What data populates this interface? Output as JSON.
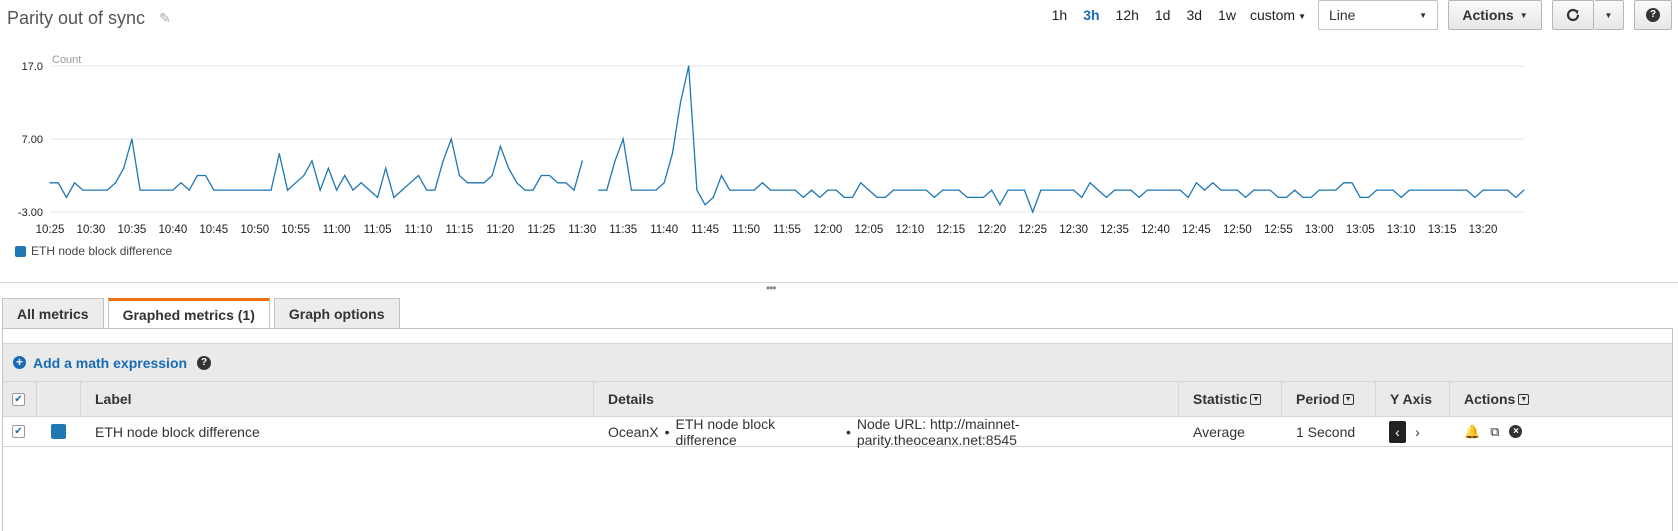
{
  "graph": {
    "title": "Parity out of sync"
  },
  "time_ranges": [
    "1h",
    "3h",
    "12h",
    "1d",
    "3d",
    "1w"
  ],
  "active_range": "3h",
  "custom_label": "custom",
  "chart_type_select": "Line",
  "actions_label": "Actions",
  "colors": {
    "series": "#1f77b4",
    "link": "#1a6bb5",
    "active_tab": "#ec7211"
  },
  "chart_data": {
    "type": "line",
    "ylabel": "Count",
    "y_ticks": [
      "17.0",
      "7.00",
      "-3.00"
    ],
    "ylim": [
      -3,
      17
    ],
    "grid": true,
    "x_ticks": [
      "10:25",
      "10:30",
      "10:35",
      "10:40",
      "10:45",
      "10:50",
      "10:55",
      "11:00",
      "11:05",
      "11:10",
      "11:15",
      "11:20",
      "11:25",
      "11:30",
      "11:35",
      "11:40",
      "11:45",
      "11:50",
      "11:55",
      "12:00",
      "12:05",
      "12:10",
      "12:15",
      "12:20",
      "12:25",
      "12:30",
      "12:35",
      "12:40",
      "12:45",
      "12:50",
      "12:55",
      "13:00",
      "13:05",
      "13:10",
      "13:15",
      "13:20"
    ],
    "x_start": "10:25",
    "x_step_minutes": 1,
    "legend_position": "bottom-left",
    "series": [
      {
        "name": "ETH node block difference",
        "values": [
          1,
          1,
          -1,
          1,
          0,
          0,
          0,
          0,
          1,
          3,
          7,
          0,
          0,
          0,
          0,
          0,
          1,
          0,
          2,
          2,
          0,
          0,
          0,
          0,
          0,
          0,
          0,
          0,
          5,
          0,
          1,
          2,
          4,
          0,
          3,
          0,
          2,
          0,
          1,
          0,
          -1,
          3,
          -1,
          0,
          1,
          2,
          0,
          0,
          4,
          7,
          2,
          1,
          1,
          1,
          2,
          6,
          3,
          1,
          0,
          0,
          2,
          2,
          1,
          1,
          0,
          4,
          null,
          0,
          0,
          4,
          7,
          0,
          0,
          0,
          0,
          1,
          5,
          12,
          17,
          0,
          -2,
          -1,
          2,
          0,
          0,
          0,
          0,
          1,
          0,
          0,
          0,
          0,
          -1,
          0,
          -1,
          0,
          0,
          -1,
          -1,
          1,
          0,
          -1,
          -1,
          0,
          0,
          0,
          0,
          0,
          -1,
          0,
          0,
          0,
          -1,
          -1,
          -1,
          0,
          -2,
          0,
          0,
          0,
          -3,
          0,
          0,
          0,
          0,
          0,
          -1,
          1,
          0,
          -1,
          0,
          0,
          0,
          -1,
          0,
          0,
          0,
          0,
          0,
          -1,
          1,
          0,
          1,
          0,
          0,
          0,
          -1,
          0,
          0,
          0,
          -1,
          -1,
          0,
          -1,
          -1,
          0,
          0,
          0,
          1,
          1,
          -1,
          -1,
          0,
          0,
          0,
          -1,
          0,
          0,
          0,
          0,
          0,
          0,
          0,
          0,
          -1,
          0,
          0,
          0,
          0,
          -1,
          0
        ]
      }
    ]
  },
  "tabs": [
    {
      "label": "All metrics"
    },
    {
      "label": "Graphed metrics (1)"
    },
    {
      "label": "Graph options"
    }
  ],
  "active_tab": "Graphed metrics (1)",
  "math_expression_label": "Add a math expression",
  "table": {
    "columns": {
      "label": "Label",
      "details": "Details",
      "statistic": "Statistic",
      "period": "Period",
      "yaxis": "Y Axis",
      "actions": "Actions"
    },
    "rows": [
      {
        "checked": true,
        "color": "#1f77b4",
        "label": "ETH node block difference",
        "details": {
          "namespace": "OceanX",
          "metric": "ETH node block difference",
          "dimension": "Node URL: http://mainnet-parity.theoceanx.net:8545"
        },
        "statistic": "Average",
        "period": "1 Second"
      }
    ]
  }
}
